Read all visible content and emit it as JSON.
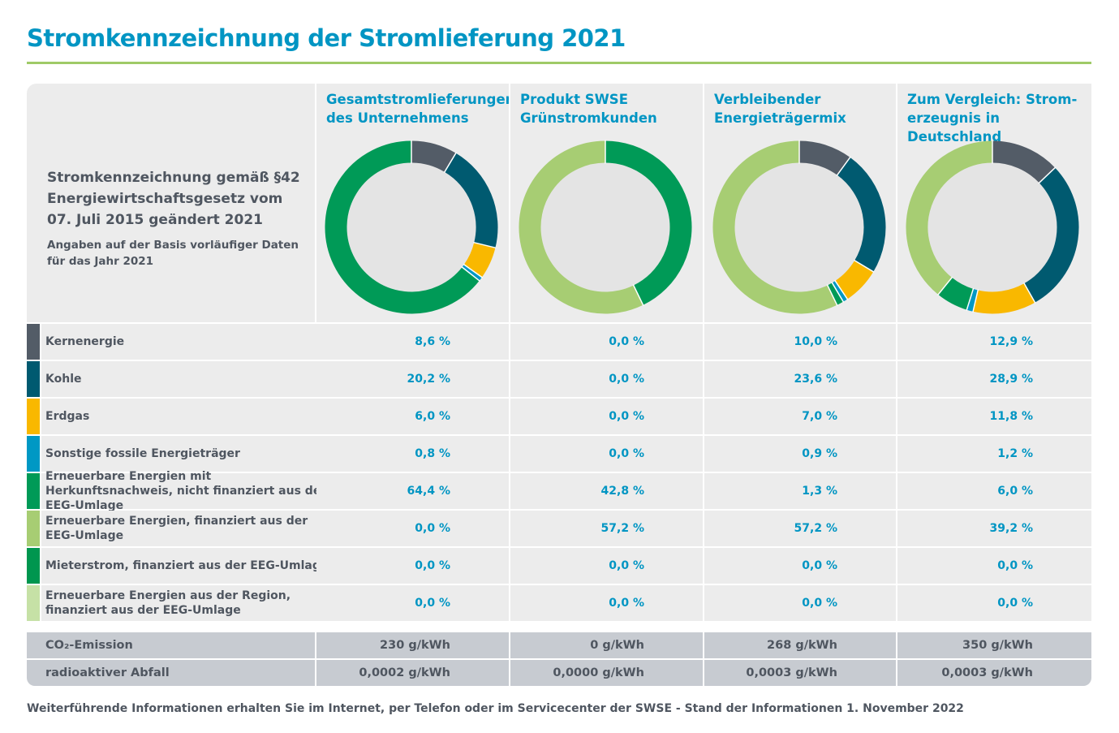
{
  "title": "Stromkennzeichnung der Stromlieferung 2021",
  "intro": {
    "heading": "Stromkennzeichnung gemäß §42 Energiewirtschaftsgesetz vom 07. Juli 2015 geändert 2021",
    "note": "Angaben auf der Basis vorläufiger Daten für das Jahr 2021"
  },
  "columns": [
    "Gesamtstromlieferungen des Unternehmens",
    "Produkt SWSE Grünstromkunden",
    "Verbleibender Energieträgermix",
    "Zum Vergleich: Strom-erzeugnis in Deutschland"
  ],
  "rows": [
    {
      "label": "Kernenergie",
      "color": "#535c67",
      "values": [
        "8,6 %",
        "0,0 %",
        "10,0 %",
        "12,9 %"
      ]
    },
    {
      "label": "Kohle",
      "color": "#005a70",
      "values": [
        "20,2 %",
        "0,0 %",
        "23,6 %",
        "28,9 %"
      ]
    },
    {
      "label": "Erdgas",
      "color": "#f9b800",
      "values": [
        "6,0 %",
        "0,0 %",
        "7,0 %",
        "11,8 %"
      ]
    },
    {
      "label": "Sonstige fossile Energieträger",
      "color": "#0098c4",
      "values": [
        "0,8 %",
        "0,0 %",
        "0,9 %",
        "1,2 %"
      ]
    },
    {
      "label": "Erneuerbare Energien mit Herkunftsnachweis, nicht finanziert aus der EEG-Umlage",
      "color": "#009a57",
      "values": [
        "64,4 %",
        "42,8 %",
        "1,3 %",
        "6,0 %"
      ]
    },
    {
      "label": "Erneuerbare Energien, finanziert aus der EEG-Umlage",
      "color": "#a7cd73",
      "values": [
        "0,0 %",
        "57,2 %",
        "57,2 %",
        "39,2 %"
      ]
    },
    {
      "label": "Mieterstrom, finanziert aus der EEG-Umlage",
      "color": "#00964f",
      "values": [
        "0,0 %",
        "0,0 %",
        "0,0 %",
        "0,0 %"
      ]
    },
    {
      "label": "Erneuerbare Energien aus der Region, finanziert aus der EEG-Umlage",
      "color": "#c6e1a6",
      "values": [
        "0,0 %",
        "0,0 %",
        "0,0 %",
        "0,0 %"
      ]
    }
  ],
  "bottom_rows": [
    {
      "label": "CO₂-Emission",
      "values": [
        "230 g/kWh",
        "0 g/kWh",
        "268 g/kWh",
        "350 g/kWh"
      ]
    },
    {
      "label": "radioaktiver Abfall",
      "values": [
        "0,0002 g/kWh",
        "0,0000 g/kWh",
        "0,0003 g/kWh",
        "0,0003 g/kWh"
      ]
    }
  ],
  "footer": "Weiterführende Informationen erhalten Sie im Internet, per Telefon oder im Servicecenter der SWSE - Stand der Informationen 1. November 2022",
  "chart_data": [
    {
      "type": "pie",
      "variant": "donut",
      "title": "Gesamtstromlieferungen des Unternehmens",
      "categories": [
        "Kernenergie",
        "Kohle",
        "Erdgas",
        "Sonstige fossile Energieträger",
        "Erneuerbare Energien mit Herkunftsnachweis",
        "Erneuerbare Energien (EEG)",
        "Mieterstrom",
        "Erneuerbare Energien aus der Region"
      ],
      "values": [
        8.6,
        20.2,
        6.0,
        0.8,
        64.4,
        0.0,
        0.0,
        0.0
      ]
    },
    {
      "type": "pie",
      "variant": "donut",
      "title": "Produkt SWSE Grünstromkunden",
      "categories": [
        "Kernenergie",
        "Kohle",
        "Erdgas",
        "Sonstige fossile Energieträger",
        "Erneuerbare Energien mit Herkunftsnachweis",
        "Erneuerbare Energien (EEG)",
        "Mieterstrom",
        "Erneuerbare Energien aus der Region"
      ],
      "values": [
        0.0,
        0.0,
        0.0,
        0.0,
        42.8,
        57.2,
        0.0,
        0.0
      ]
    },
    {
      "type": "pie",
      "variant": "donut",
      "title": "Verbleibender Energieträgermix",
      "categories": [
        "Kernenergie",
        "Kohle",
        "Erdgas",
        "Sonstige fossile Energieträger",
        "Erneuerbare Energien mit Herkunftsnachweis",
        "Erneuerbare Energien (EEG)",
        "Mieterstrom",
        "Erneuerbare Energien aus der Region"
      ],
      "values": [
        10.0,
        23.6,
        7.0,
        0.9,
        1.3,
        57.2,
        0.0,
        0.0
      ]
    },
    {
      "type": "pie",
      "variant": "donut",
      "title": "Zum Vergleich: Strom-erzeugnis in Deutschland",
      "categories": [
        "Kernenergie",
        "Kohle",
        "Erdgas",
        "Sonstige fossile Energieträger",
        "Erneuerbare Energien mit Herkunftsnachweis",
        "Erneuerbare Energien (EEG)",
        "Mieterstrom",
        "Erneuerbare Energien aus der Region"
      ],
      "values": [
        12.9,
        28.9,
        11.8,
        1.2,
        6.0,
        39.2,
        0.0,
        0.0
      ]
    }
  ]
}
